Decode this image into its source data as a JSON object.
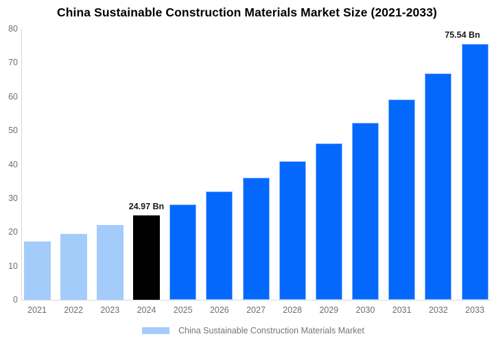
{
  "title": "China Sustainable Construction Materials Market Size (2021-2033)",
  "chart_data": {
    "type": "bar",
    "title": "China Sustainable Construction Materials Market Size (2021-2033)",
    "categories": [
      "2021",
      "2022",
      "2023",
      "2024",
      "2025",
      "2026",
      "2027",
      "2028",
      "2029",
      "2030",
      "2031",
      "2032",
      "2033"
    ],
    "values": [
      17.27,
      19.53,
      22.08,
      24.97,
      28.24,
      31.93,
      36.11,
      40.84,
      46.18,
      52.22,
      59.06,
      66.79,
      75.54
    ],
    "unit": "Bn",
    "bar_colors": [
      "#a3ccfa",
      "#a3ccfa",
      "#a3ccfa",
      "#000000",
      "#0568fd",
      "#0568fd",
      "#0568fd",
      "#0568fd",
      "#0568fd",
      "#0568fd",
      "#0568fd",
      "#0568fd",
      "#0568fd"
    ],
    "annotations": [
      {
        "category": "2024",
        "text": "24.97 Bn"
      },
      {
        "category": "2033",
        "text": "75.54 Bn"
      }
    ],
    "xlabel": "",
    "ylabel": "",
    "ylim": [
      0,
      80
    ],
    "yticks": [
      0,
      10,
      20,
      30,
      40,
      50,
      60,
      70,
      80
    ],
    "grid": false,
    "legend_position": "bottom"
  },
  "legend": {
    "label": "China Sustainable Construction Materials Market",
    "swatch_color": "#a3ccfa"
  },
  "colors": {
    "bar_light": "#a3ccfa",
    "bar_primary": "#0568fd",
    "bar_highlight": "#000000",
    "axis_line": "#d9d9d9",
    "tick_text": "#6e6e6e",
    "legend_text": "#757575",
    "annotation_text": "#1a1a1a",
    "title_text": "#000000",
    "background": "#ffffff"
  }
}
